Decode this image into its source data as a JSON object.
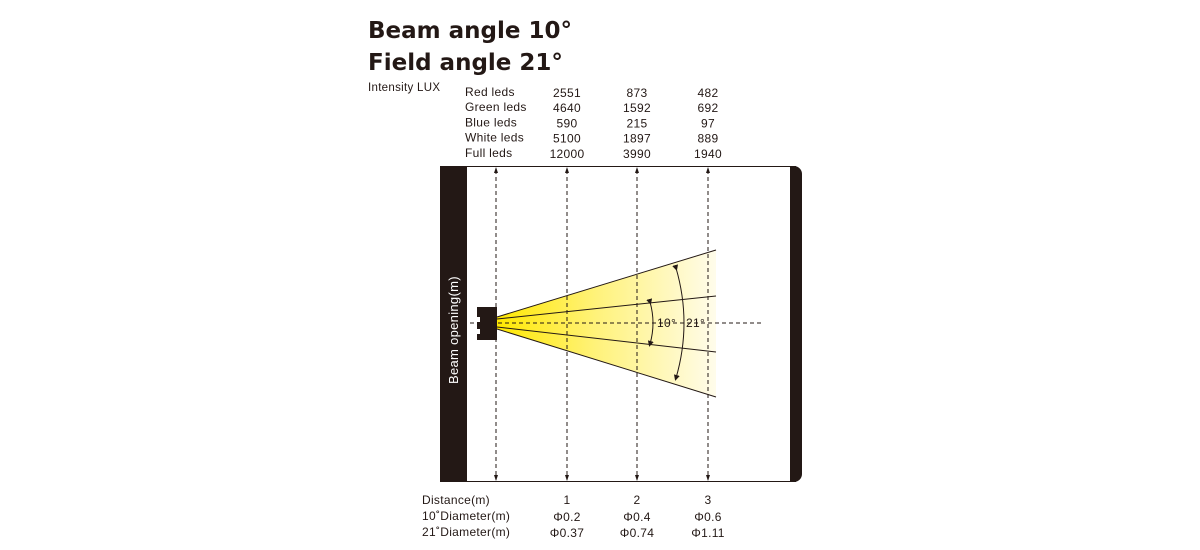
{
  "title": {
    "beam": "Beam angle 10°",
    "field": "Field angle 21°"
  },
  "intensity_label": "Intensity LUX",
  "intensity_rows": [
    {
      "label": "Red leds",
      "values": [
        "2551",
        "873",
        "482"
      ]
    },
    {
      "label": "Green leds",
      "values": [
        "4640",
        "1592",
        "692"
      ]
    },
    {
      "label": "Blue leds",
      "values": [
        "590",
        "215",
        "97"
      ]
    },
    {
      "label": "White leds",
      "values": [
        "5100",
        "1897",
        "889"
      ]
    },
    {
      "label": "Full leds",
      "values": [
        "12000",
        "3990",
        "1940"
      ]
    }
  ],
  "axis_label": "Beam opening(m)",
  "angles": {
    "beam": "10°",
    "field": "21°"
  },
  "bottom_rows": [
    {
      "label": "Distance(m)",
      "values": [
        "1",
        "2",
        "3"
      ]
    },
    {
      "label": "10˚Diameter(m)",
      "values": [
        "Φ0.2",
        "Φ0.4",
        "Φ0.6"
      ]
    },
    {
      "label": "21˚Diameter(m)",
      "values": [
        "Φ0.37",
        "Φ0.74",
        "Φ1.11"
      ]
    }
  ],
  "colors": {
    "beam_core": "#FFE800",
    "beam_edge": "#FFFBE6",
    "frame": "#231815"
  }
}
